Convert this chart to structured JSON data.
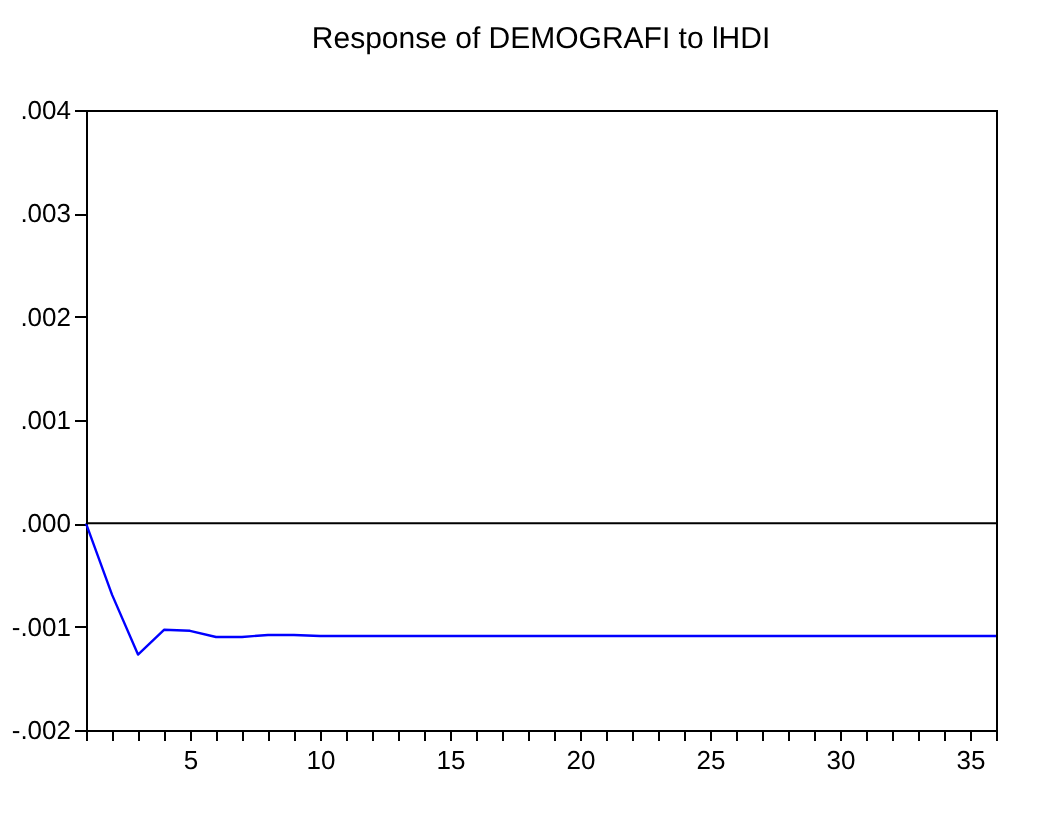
{
  "chart_data": {
    "type": "line",
    "title": "Response of DEMOGRAFI to lHDI",
    "x": [
      1,
      2,
      3,
      4,
      5,
      6,
      7,
      8,
      9,
      10,
      11,
      12,
      13,
      14,
      15,
      16,
      17,
      18,
      19,
      20,
      21,
      22,
      23,
      24,
      25,
      26,
      27,
      28,
      29,
      30,
      31,
      32,
      33,
      34,
      35,
      36
    ],
    "series": [
      {
        "color": "#0000ff",
        "values": [
          0,
          -0.00069,
          -0.00127,
          -0.00103,
          -0.00104,
          -0.0011,
          -0.0011,
          -0.00108,
          -0.00108,
          -0.00109,
          -0.00109,
          -0.00109,
          -0.00109,
          -0.00109,
          -0.00109,
          -0.00109,
          -0.00109,
          -0.00109,
          -0.00109,
          -0.00109,
          -0.00109,
          -0.00109,
          -0.00109,
          -0.00109,
          -0.00109,
          -0.00109,
          -0.00109,
          -0.00109,
          -0.00109,
          -0.00109,
          -0.00109,
          -0.00109,
          -0.00109,
          -0.00109,
          -0.00109,
          -0.00109
        ]
      }
    ],
    "xlim": [
      1,
      36
    ],
    "xticks": [
      {
        "value": 1,
        "label": null
      },
      {
        "value": 2,
        "label": null
      },
      {
        "value": 3,
        "label": null
      },
      {
        "value": 4,
        "label": null
      },
      5,
      {
        "value": 6,
        "label": null
      },
      {
        "value": 7,
        "label": null
      },
      {
        "value": 8,
        "label": null
      },
      {
        "value": 9,
        "label": null
      },
      10,
      {
        "value": 11,
        "label": null
      },
      {
        "value": 12,
        "label": null
      },
      {
        "value": 13,
        "label": null
      },
      {
        "value": 14,
        "label": null
      },
      15,
      {
        "value": 16,
        "label": null
      },
      {
        "value": 17,
        "label": null
      },
      {
        "value": 18,
        "label": null
      },
      {
        "value": 19,
        "label": null
      },
      20,
      {
        "value": 21,
        "label": null
      },
      {
        "value": 22,
        "label": null
      },
      {
        "value": 23,
        "label": null
      },
      {
        "value": 24,
        "label": null
      },
      25,
      {
        "value": 26,
        "label": null
      },
      {
        "value": 27,
        "label": null
      },
      {
        "value": 28,
        "label": null
      },
      {
        "value": 29,
        "label": null
      },
      30,
      {
        "value": 31,
        "label": null
      },
      {
        "value": 32,
        "label": null
      },
      {
        "value": 33,
        "label": null
      },
      {
        "value": 34,
        "label": null
      },
      35,
      {
        "value": 36,
        "label": null
      }
    ],
    "ylim": [
      -0.002,
      0.004
    ],
    "yticks": [
      {
        "value": -0.002,
        "label": "-.002"
      },
      {
        "value": -0.001,
        "label": "-.001"
      },
      {
        "value": 0,
        "label": ".000"
      },
      {
        "value": 0.001,
        "label": ".001"
      },
      {
        "value": 0.002,
        "label": ".002"
      },
      {
        "value": 0.003,
        "label": ".003"
      },
      {
        "value": 0.004,
        "label": ".004"
      }
    ],
    "ref_lines": [
      {
        "axis": "y",
        "value": 0,
        "color": "#000000"
      }
    ],
    "grid": false,
    "marker": "none",
    "line_style": "solid"
  }
}
